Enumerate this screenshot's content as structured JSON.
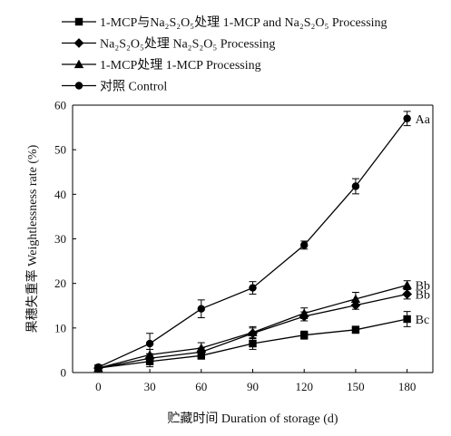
{
  "chart_data": {
    "type": "line",
    "xlabel": "贮藏时间 Duration of storage (d)",
    "ylabel": "果穗失重率 Weightlessness rate (%)",
    "x": [
      0,
      30,
      60,
      90,
      120,
      150,
      180
    ],
    "xlim": [
      -15,
      195
    ],
    "ylim": [
      0,
      60
    ],
    "xticks": [
      0,
      30,
      60,
      90,
      120,
      150,
      180
    ],
    "yticks": [
      0,
      10,
      20,
      30,
      40,
      50,
      60
    ],
    "grid": false,
    "legend_position": "top-left",
    "series": [
      {
        "name": "1-MCP与Na₂S₂O₅处理 1-MCP and Na₂S₂O₅ Processing",
        "marker": "square",
        "values": [
          1.0,
          2.5,
          3.8,
          6.5,
          8.4,
          9.6,
          12.0
        ],
        "errors": [
          0.4,
          1.2,
          0.8,
          1.3,
          0.9,
          0.8,
          1.7
        ],
        "annotation": "Bc"
      },
      {
        "name": "Na₂S₂O₅处理 Na₂S₂O₅ Processing",
        "marker": "diamond",
        "values": [
          1.0,
          3.2,
          4.6,
          8.8,
          12.6,
          15.1,
          17.6
        ],
        "errors": [
          0.3,
          1.0,
          0.9,
          1.2,
          1.0,
          0.9,
          1.1
        ],
        "annotation": "Bb"
      },
      {
        "name": "1-MCP处理 1-MCP Processing",
        "marker": "triangle",
        "values": [
          1.0,
          4.0,
          5.5,
          9.0,
          13.3,
          16.5,
          19.6
        ],
        "errors": [
          0.3,
          1.2,
          1.2,
          1.3,
          1.2,
          1.5,
          1.0
        ],
        "annotation": "Bb"
      },
      {
        "name": "对照 Control",
        "marker": "circle",
        "values": [
          1.2,
          6.5,
          14.3,
          19.0,
          28.6,
          41.8,
          57.0
        ],
        "errors": [
          0.4,
          2.3,
          2.0,
          1.4,
          0.9,
          1.7,
          1.6
        ],
        "annotation": "Aa"
      }
    ]
  }
}
